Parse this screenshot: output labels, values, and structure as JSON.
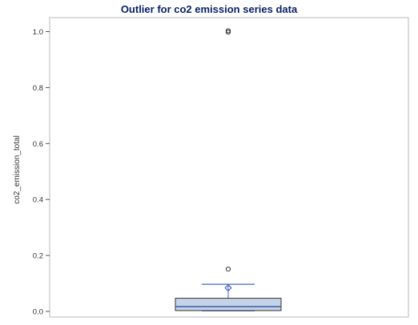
{
  "chart_data": {
    "type": "box",
    "title": "Outlier for co2 emission series data",
    "xlabel": "",
    "ylabel": "co2_emission_total",
    "ylim": [
      -0.02,
      1.05
    ],
    "y_ticks": [
      "0.0",
      "0.2",
      "0.4",
      "0.6",
      "0.8",
      "1.0"
    ],
    "y_tick_values": [
      0.0,
      0.2,
      0.4,
      0.6,
      0.8,
      1.0
    ],
    "grid": false,
    "legend": "none",
    "box": {
      "q1": 0.003,
      "median": 0.017,
      "q3": 0.047,
      "whisker_low": 0.002,
      "whisker_high": 0.097,
      "mean": 0.084,
      "outliers": [
        0.151,
        0.998,
        1.003
      ]
    },
    "colors": {
      "title": "#0a1f64",
      "box_fill": "#c5d3e8",
      "box_stroke": "#333333",
      "whisker": "#4466c0",
      "median": "#2f4f9c",
      "mean_marker": "#4466c0",
      "outlier": "#333333",
      "frame": "#b8b8b8"
    }
  }
}
